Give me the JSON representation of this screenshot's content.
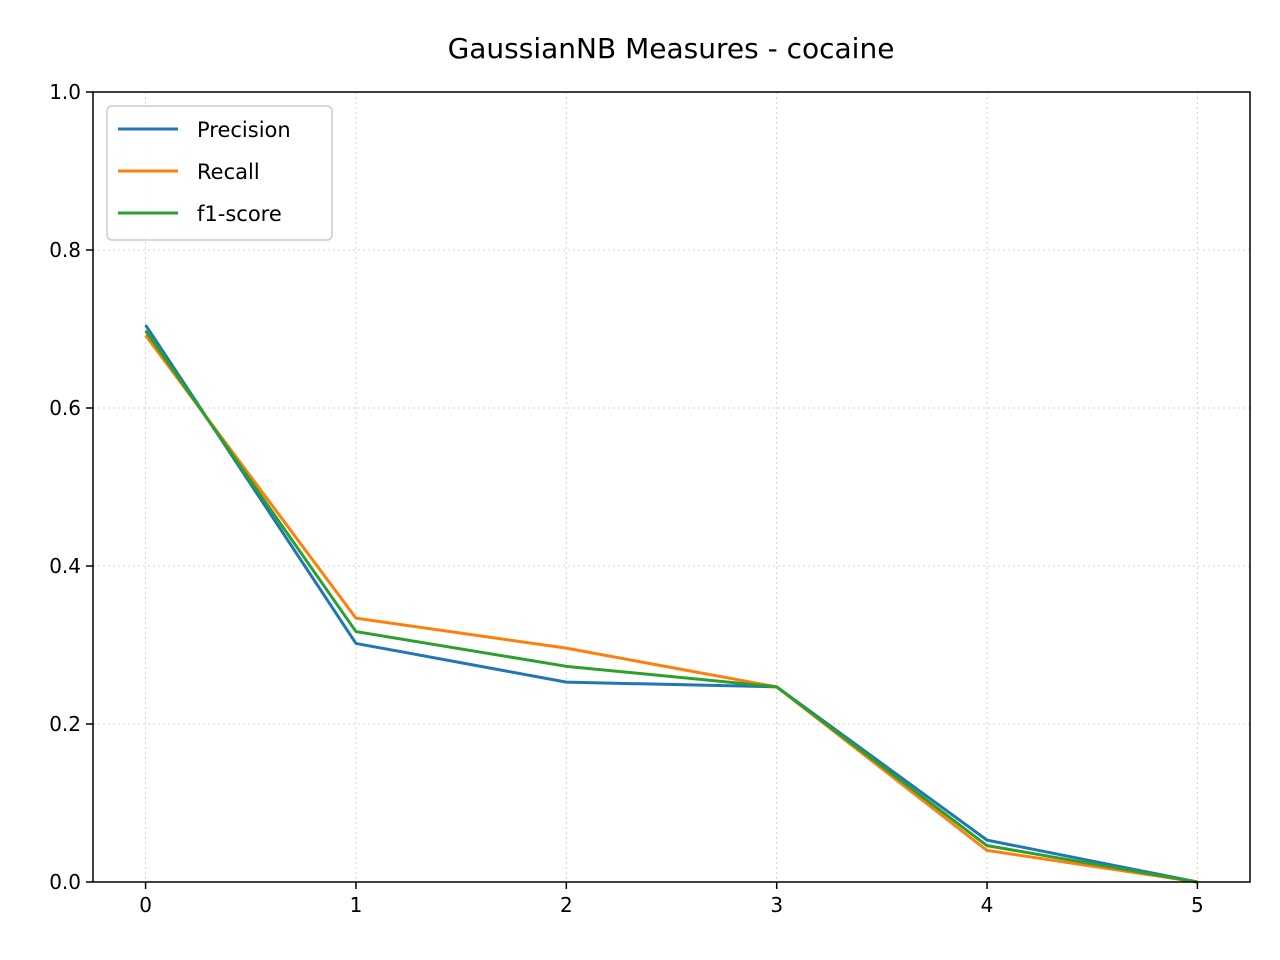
{
  "chart_data": {
    "type": "line",
    "title": "GaussianNB Measures - cocaine",
    "xlabel": "",
    "ylabel": "",
    "x": [
      0,
      1,
      2,
      3,
      4,
      5
    ],
    "xticks": [
      "0",
      "1",
      "2",
      "3",
      "4",
      "5"
    ],
    "yticks": [
      "0.0",
      "0.2",
      "0.4",
      "0.6",
      "0.8",
      "1.0"
    ],
    "xlim": [
      -0.25,
      5.25
    ],
    "ylim": [
      0,
      1
    ],
    "grid": true,
    "legend_position": "top-left",
    "series": [
      {
        "name": "Precision",
        "color": "#1f77b4",
        "values": [
          0.705,
          0.302,
          0.253,
          0.247,
          0.053,
          0.0
        ]
      },
      {
        "name": "Recall",
        "color": "#ff7f0e",
        "values": [
          0.692,
          0.334,
          0.296,
          0.247,
          0.04,
          0.0
        ]
      },
      {
        "name": "f1-score",
        "color": "#2ca02c",
        "values": [
          0.698,
          0.317,
          0.273,
          0.247,
          0.046,
          0.0
        ]
      }
    ]
  }
}
